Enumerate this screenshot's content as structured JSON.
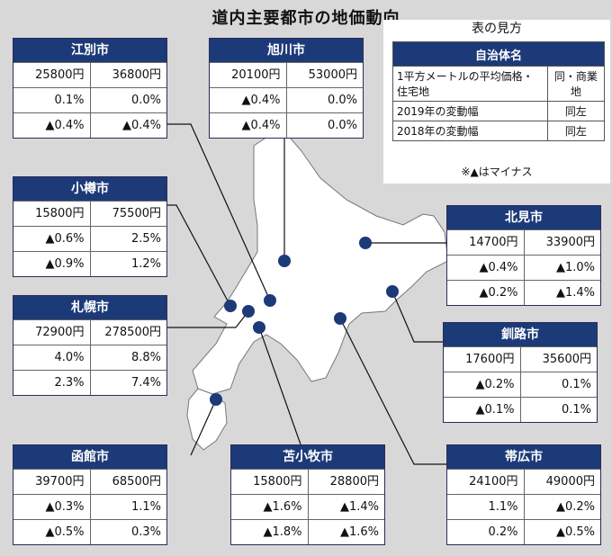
{
  "title": "道内主要都市の地価動向",
  "legend": {
    "title": "表の見方",
    "header": "自治体名",
    "row1": [
      "1平方メートルの平均価格・住宅地",
      "同・商業地"
    ],
    "row2": [
      "2019年の変動幅",
      "同左"
    ],
    "row3": [
      "2018年の変動幅",
      "同左"
    ],
    "note": "※▲はマイナス"
  },
  "cities": {
    "esashi": {
      "name": "江別市",
      "price": [
        "25800円",
        "36800円"
      ],
      "y2019": [
        "0.1%",
        "0.0%"
      ],
      "y2018": [
        "▲0.4%",
        "▲0.4%"
      ]
    },
    "asahikawa": {
      "name": "旭川市",
      "price": [
        "20100円",
        "53000円"
      ],
      "y2019": [
        "▲0.4%",
        "0.0%"
      ],
      "y2018": [
        "▲0.4%",
        "0.0%"
      ]
    },
    "otaru": {
      "name": "小樽市",
      "price": [
        "15800円",
        "75500円"
      ],
      "y2019": [
        "▲0.6%",
        "2.5%"
      ],
      "y2018": [
        "▲0.9%",
        "1.2%"
      ]
    },
    "sapporo": {
      "name": "札幌市",
      "price": [
        "72900円",
        "278500円"
      ],
      "y2019": [
        "4.0%",
        "8.8%"
      ],
      "y2018": [
        "2.3%",
        "7.4%"
      ]
    },
    "hakodate": {
      "name": "函館市",
      "price": [
        "39700円",
        "68500円"
      ],
      "y2019": [
        "▲0.3%",
        "1.1%"
      ],
      "y2018": [
        "▲0.5%",
        "0.3%"
      ]
    },
    "tomakomai": {
      "name": "苫小牧市",
      "price": [
        "15800円",
        "28800円"
      ],
      "y2019": [
        "▲1.6%",
        "▲1.4%"
      ],
      "y2018": [
        "▲1.8%",
        "▲1.6%"
      ]
    },
    "kitami": {
      "name": "北見市",
      "price": [
        "14700円",
        "33900円"
      ],
      "y2019": [
        "▲0.4%",
        "▲1.0%"
      ],
      "y2018": [
        "▲0.2%",
        "▲1.4%"
      ]
    },
    "kushiro": {
      "name": "釧路市",
      "price": [
        "17600円",
        "35600円"
      ],
      "y2019": [
        "▲0.2%",
        "0.1%"
      ],
      "y2018": [
        "▲0.1%",
        "0.1%"
      ]
    },
    "obihiro": {
      "name": "帯広市",
      "price": [
        "24100円",
        "49000円"
      ],
      "y2019": [
        "1.1%",
        "▲0.2%"
      ],
      "y2018": [
        "0.2%",
        "▲0.5%"
      ]
    }
  },
  "colors": {
    "header_bg": "#1d3a78",
    "dot": "#1d3a78",
    "land": "#ffffff",
    "sea": "#d8d8d8"
  }
}
